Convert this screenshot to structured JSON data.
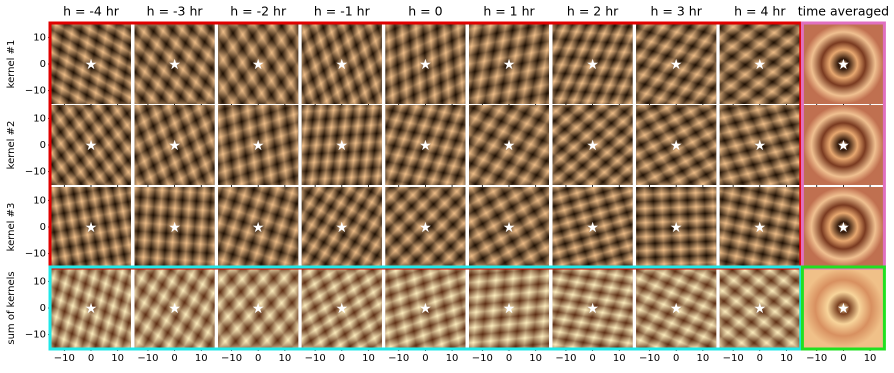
{
  "figure": {
    "column_titles": [
      "h = -4 hr",
      "h = -3 hr",
      "h = -2 hr",
      "h = -1 hr",
      "h = 0",
      "h = 1 hr",
      "h = 2 hr",
      "h = 3 hr",
      "h = 4 hr",
      "time averaged"
    ],
    "row_labels": [
      "kernel #1",
      "kernel #2",
      "kernel #3",
      "sum of kernels"
    ],
    "y_tick_labels": [
      "10",
      "0",
      "−10"
    ],
    "x_tick_labels": [
      "−10",
      "0",
      "10"
    ]
  }
}
